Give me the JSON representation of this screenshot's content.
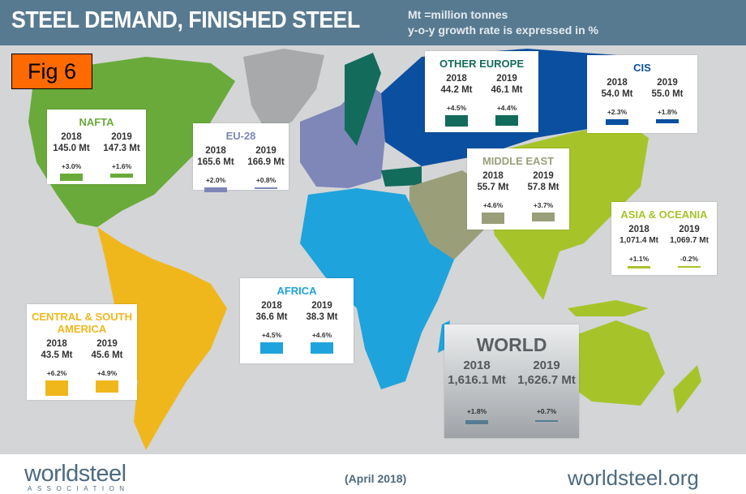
{
  "header": {
    "title": "STEEL DEMAND, FINISHED STEEL",
    "note_units": "Mt =million tonnes",
    "note_growth": "y-o-y growth rate is expressed in %",
    "background": "#587a91"
  },
  "figure_label": "Fig 6",
  "year_labels": [
    "2018",
    "2019"
  ],
  "regions": [
    {
      "name": "NAFTA",
      "color": "#6aaa3a",
      "v2018": "145.0 Mt",
      "v2019": "147.3 Mt",
      "g2018": "+3.0%",
      "g2019": "+1.6%",
      "growth": [
        3.0,
        1.6
      ]
    },
    {
      "name": "EU-28",
      "color": "#7f86b8",
      "v2018": "165.6 Mt",
      "v2019": "166.9 Mt",
      "g2018": "+2.0%",
      "g2019": "+0.8%",
      "growth": [
        2.0,
        0.8
      ]
    },
    {
      "name": "OTHER EUROPE",
      "color": "#136b5c",
      "v2018": "44.2 Mt",
      "v2019": "46.1 Mt",
      "g2018": "+4.5%",
      "g2019": "+4.4%",
      "growth": [
        4.5,
        4.4
      ]
    },
    {
      "name": "CIS",
      "color": "#0b4fa0",
      "v2018": "54.0 Mt",
      "v2019": "55.0 Mt",
      "g2018": "+2.3%",
      "g2019": "+1.8%",
      "growth": [
        2.3,
        1.8
      ]
    },
    {
      "name": "MIDDLE EAST",
      "color": "#9a9f7a",
      "v2018": "55.7 Mt",
      "v2019": "57.8 Mt",
      "g2018": "+4.6%",
      "g2019": "+3.7%",
      "growth": [
        4.6,
        3.7
      ]
    },
    {
      "name": "ASIA & OCEANIA",
      "color": "#a6c42a",
      "v2018": "1,071.4 Mt",
      "v2019": "1,069.7 Mt",
      "g2018": "+1.1%",
      "g2019": "-0.2%",
      "growth": [
        1.1,
        -0.2
      ]
    },
    {
      "name": "AFRICA",
      "color": "#1fa3dc",
      "v2018": "36.6 Mt",
      "v2019": "38.3 Mt",
      "g2018": "+4.5%",
      "g2019": "+4.6%",
      "growth": [
        4.5,
        4.6
      ]
    },
    {
      "name": "CENTRAL & SOUTH AMERICA",
      "color": "#f0b71c",
      "v2018": "43.5 Mt",
      "v2019": "45.6 Mt",
      "g2018": "+6.2%",
      "g2019": "+4.9%",
      "growth": [
        6.2,
        4.9
      ]
    },
    {
      "name": "WORLD",
      "color": "#557b93",
      "v2018": "1,616.1 Mt",
      "v2019": "1,626.7 Mt",
      "g2018": "+1.8%",
      "g2019": "+0.7%",
      "growth": [
        1.8,
        0.7
      ]
    }
  ],
  "footer": {
    "logo_text": "worldsteel",
    "logo_sub": "ASSOCIATION",
    "date": "(April 2018)",
    "url": "worldsteel.org"
  }
}
